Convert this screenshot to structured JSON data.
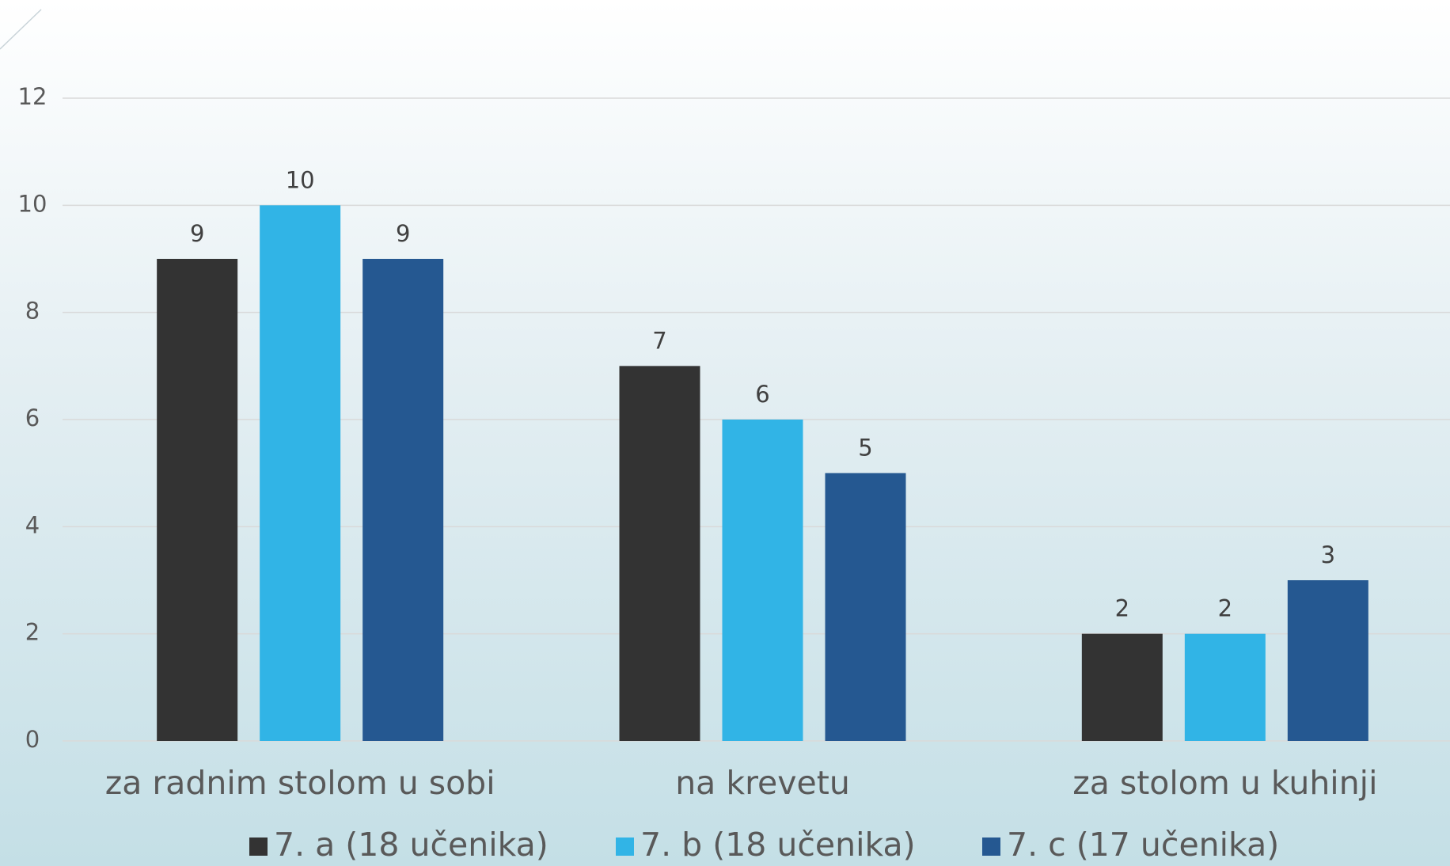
{
  "chart_data": {
    "type": "bar",
    "categories": [
      "za radnim stolom u sobi",
      "na krevetu",
      "za stolom u kuhinji"
    ],
    "series": [
      {
        "name": "7. a (18 učenika)",
        "color": "#333333",
        "values": [
          9,
          7,
          2
        ]
      },
      {
        "name": "7. b (18 učenika)",
        "color": "#31b4e6",
        "values": [
          10,
          6,
          2
        ]
      },
      {
        "name": "7. c (17 učenika)",
        "color": "#255891",
        "values": [
          9,
          5,
          3
        ]
      }
    ],
    "ylim": [
      0,
      12
    ],
    "yticks": [
      0,
      2,
      4,
      6,
      8,
      10,
      12
    ],
    "grid": true,
    "legend": "bottom"
  }
}
